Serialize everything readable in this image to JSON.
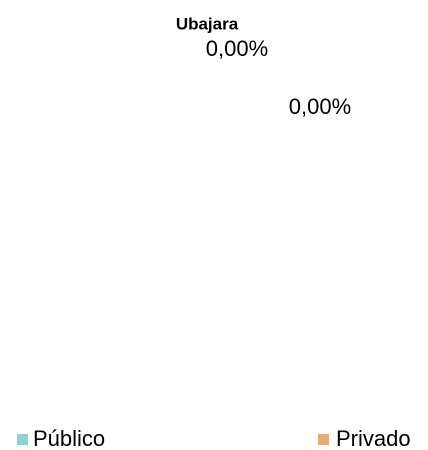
{
  "chart_data": {
    "type": "pie",
    "title": "Ubajara",
    "categories": [
      "Público",
      "Privado"
    ],
    "values": [
      0,
      0
    ],
    "value_labels": [
      "0,00%",
      "0,00%"
    ],
    "colors": [
      "#8fd0d2",
      "#e2ab78"
    ]
  }
}
